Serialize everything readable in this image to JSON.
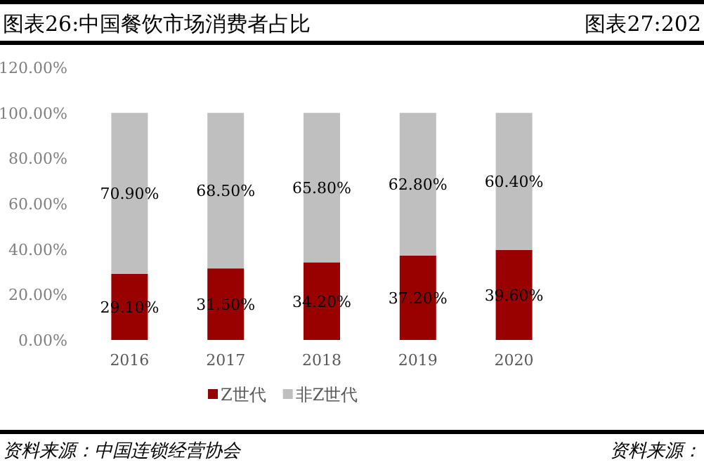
{
  "chart_data": {
    "type": "bar",
    "stacked": true,
    "title": "图表26:中国餐饮市场消费者占比",
    "categories": [
      "2016",
      "2017",
      "2018",
      "2019",
      "2020"
    ],
    "series": [
      {
        "name": "Z世代",
        "color": "#990000",
        "values": [
          29.1,
          31.5,
          34.2,
          37.2,
          39.6
        ],
        "value_labels": [
          "29.10%",
          "31.50%",
          "34.20%",
          "37.20%",
          "39.60%"
        ]
      },
      {
        "name": "非Z世代",
        "color": "#bfbfbf",
        "values": [
          70.9,
          68.5,
          65.8,
          62.8,
          60.4
        ],
        "value_labels": [
          "70.90%",
          "68.50%",
          "65.80%",
          "62.80%",
          "60.40%"
        ]
      }
    ],
    "ylim": [
      0,
      120
    ],
    "yticks": [
      {
        "value": 0,
        "label": "0.00%"
      },
      {
        "value": 20,
        "label": "20.00%"
      },
      {
        "value": 40,
        "label": "40.00%"
      },
      {
        "value": 60,
        "label": "60.00%"
      },
      {
        "value": 80,
        "label": "80.00%"
      },
      {
        "value": 100,
        "label": "100.00%"
      },
      {
        "value": 120,
        "label": "120.00%"
      }
    ],
    "legend": "bottom",
    "annotations": [
      "图表27:202",
      "资料来源：中国连锁经营协会",
      "资料来源："
    ]
  }
}
